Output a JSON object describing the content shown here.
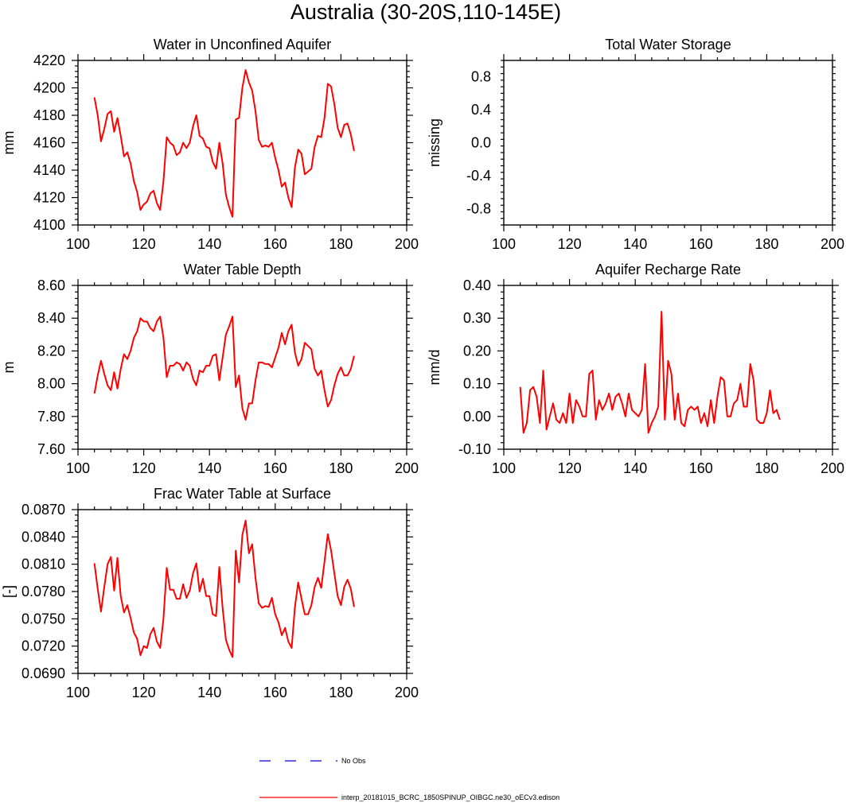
{
  "figure": {
    "title": "Australia (30-20S,110-145E)",
    "series_color": "#ff0000",
    "obs_color": "#0000cc"
  },
  "legend": {
    "obs_label": "No Obs",
    "model_label": "interp_20181015_BCRC_1850SPINUP_OIBGC.ne30_oECv3.edison"
  },
  "chart_data": [
    {
      "id": "aquifer",
      "type": "line",
      "title": "Water in Unconfined Aquifer",
      "xlabel": "",
      "ylabel": "mm",
      "xlim": [
        100,
        200
      ],
      "ylim": [
        4100,
        4220
      ],
      "xticks": [
        100,
        120,
        140,
        160,
        180,
        200
      ],
      "yticks": [
        4100,
        4120,
        4140,
        4160,
        4180,
        4200,
        4220
      ],
      "ytick_labels": [
        "4100",
        "4120",
        "4140",
        "4160",
        "4180",
        "4200",
        "4220"
      ],
      "series": [
        {
          "name": "interp_20181015_BCRC_1850SPINUP_OIBGC.ne30_oECv3.edison",
          "x": [
            105,
            106,
            107,
            108,
            109,
            110,
            111,
            112,
            113,
            114,
            115,
            116,
            117,
            118,
            119,
            120,
            121,
            122,
            123,
            124,
            125,
            126,
            127,
            128,
            129,
            130,
            131,
            132,
            133,
            134,
            135,
            136,
            137,
            138,
            139,
            140,
            141,
            142,
            143,
            144,
            145,
            146,
            147,
            148,
            149,
            150,
            151,
            152,
            153,
            154,
            155,
            156,
            157,
            158,
            159,
            160,
            161,
            162,
            163,
            164,
            165,
            166,
            167,
            168,
            169,
            170,
            171,
            172,
            173,
            174,
            175,
            176,
            177,
            178,
            179,
            180,
            181,
            182,
            183,
            184
          ],
          "values": [
            4193,
            4180,
            4161,
            4170,
            4181,
            4183,
            4168,
            4178,
            4165,
            4150,
            4153,
            4145,
            4132,
            4124,
            4111,
            4115,
            4117,
            4123,
            4125,
            4116,
            4111,
            4132,
            4164,
            4160,
            4158,
            4151,
            4153,
            4160,
            4156,
            4160,
            4172,
            4180,
            4165,
            4163,
            4157,
            4156,
            4146,
            4141,
            4160,
            4145,
            4122,
            4113,
            4106,
            4177,
            4178,
            4200,
            4213,
            4204,
            4198,
            4183,
            4162,
            4157,
            4158,
            4157,
            4160,
            4149,
            4140,
            4128,
            4131,
            4120,
            4113,
            4142,
            4155,
            4152,
            4137,
            4139,
            4141,
            4157,
            4165,
            4164,
            4178,
            4203,
            4201,
            4188,
            4171,
            4164,
            4173,
            4174,
            4166,
            4154
          ]
        }
      ]
    },
    {
      "id": "tws",
      "type": "line",
      "title": "Total Water Storage",
      "xlabel": "",
      "ylabel": "missing",
      "xlim": [
        100,
        200
      ],
      "ylim": [
        -1.0,
        1.0
      ],
      "xticks": [
        100,
        120,
        140,
        160,
        180,
        200
      ],
      "yticks": [
        -0.8,
        -0.4,
        0.0,
        0.4,
        0.8
      ],
      "ytick_labels": [
        "-0.8",
        "-0.4",
        "0.0",
        "0.4",
        "0.8"
      ],
      "series": []
    },
    {
      "id": "wtd",
      "type": "line",
      "title": "Water Table Depth",
      "xlabel": "",
      "ylabel": "m",
      "xlim": [
        100,
        200
      ],
      "ylim": [
        7.6,
        8.6
      ],
      "xticks": [
        100,
        120,
        140,
        160,
        180,
        200
      ],
      "yticks": [
        7.6,
        7.8,
        8.0,
        8.2,
        8.4,
        8.6
      ],
      "ytick_labels": [
        "7.60",
        "7.80",
        "8.00",
        "8.20",
        "8.40",
        "8.60"
      ],
      "series": [
        {
          "name": "interp_20181015_BCRC_1850SPINUP_OIBGC.ne30_oECv3.edison",
          "x": [
            105,
            106,
            107,
            108,
            109,
            110,
            111,
            112,
            113,
            114,
            115,
            116,
            117,
            118,
            119,
            120,
            121,
            122,
            123,
            124,
            125,
            126,
            127,
            128,
            129,
            130,
            131,
            132,
            133,
            134,
            135,
            136,
            137,
            138,
            139,
            140,
            141,
            142,
            143,
            144,
            145,
            146,
            147,
            148,
            149,
            150,
            151,
            152,
            153,
            154,
            155,
            156,
            157,
            158,
            159,
            160,
            161,
            162,
            163,
            164,
            165,
            166,
            167,
            168,
            169,
            170,
            171,
            172,
            173,
            174,
            175,
            176,
            177,
            178,
            179,
            180,
            181,
            182,
            183,
            184
          ],
          "values": [
            7.94,
            8.05,
            8.14,
            8.06,
            7.99,
            7.96,
            8.07,
            7.97,
            8.09,
            8.18,
            8.15,
            8.2,
            8.28,
            8.32,
            8.4,
            8.38,
            8.38,
            8.34,
            8.32,
            8.38,
            8.41,
            8.28,
            8.04,
            8.11,
            8.11,
            8.13,
            8.12,
            8.08,
            8.13,
            8.11,
            8.03,
            7.99,
            8.08,
            8.07,
            8.11,
            8.11,
            8.17,
            8.18,
            8.02,
            8.16,
            8.3,
            8.35,
            8.41,
            7.98,
            8.05,
            7.85,
            7.78,
            7.88,
            7.88,
            8.02,
            8.13,
            8.13,
            8.12,
            8.12,
            8.1,
            8.16,
            8.22,
            8.31,
            8.24,
            8.32,
            8.36,
            8.19,
            8.11,
            8.15,
            8.25,
            8.23,
            8.21,
            8.09,
            8.05,
            8.08,
            7.96,
            7.86,
            7.9,
            7.99,
            8.06,
            8.1,
            8.05,
            8.05,
            8.09,
            8.17
          ]
        }
      ]
    },
    {
      "id": "recharge",
      "type": "line",
      "title": "Aquifer Recharge Rate",
      "xlabel": "",
      "ylabel": "mm/d",
      "xlim": [
        100,
        200
      ],
      "ylim": [
        -0.1,
        0.4
      ],
      "xticks": [
        100,
        120,
        140,
        160,
        180,
        200
      ],
      "yticks": [
        -0.1,
        0.0,
        0.1,
        0.2,
        0.3,
        0.4
      ],
      "ytick_labels": [
        "-0.10",
        "0.00",
        "0.10",
        "0.20",
        "0.30",
        "0.40"
      ],
      "series": [
        {
          "name": "interp_20181015_BCRC_1850SPINUP_OIBGC.ne30_oECv3.edison",
          "x": [
            105,
            106,
            107,
            108,
            109,
            110,
            111,
            112,
            113,
            114,
            115,
            116,
            117,
            118,
            119,
            120,
            121,
            122,
            123,
            124,
            125,
            126,
            127,
            128,
            129,
            130,
            131,
            132,
            133,
            134,
            135,
            136,
            137,
            138,
            139,
            140,
            141,
            142,
            143,
            144,
            145,
            146,
            147,
            148,
            149,
            150,
            151,
            152,
            153,
            154,
            155,
            156,
            157,
            158,
            159,
            160,
            161,
            162,
            163,
            164,
            165,
            166,
            167,
            168,
            169,
            170,
            171,
            172,
            173,
            174,
            175,
            176,
            177,
            178,
            179,
            180,
            181,
            182,
            183,
            184
          ],
          "values": [
            0.09,
            -0.05,
            -0.02,
            0.08,
            0.09,
            0.06,
            -0.02,
            0.14,
            -0.04,
            0.0,
            0.04,
            -0.01,
            -0.02,
            0.01,
            -0.02,
            0.07,
            -0.02,
            0.05,
            0.03,
            0.0,
            0.0,
            0.13,
            0.14,
            -0.01,
            0.05,
            0.02,
            0.04,
            0.07,
            0.02,
            0.06,
            0.07,
            0.04,
            0.0,
            0.07,
            0.02,
            0.01,
            0.0,
            0.02,
            0.16,
            -0.05,
            -0.02,
            0.0,
            0.03,
            0.32,
            -0.01,
            0.17,
            0.13,
            -0.01,
            0.07,
            -0.02,
            -0.03,
            0.02,
            0.03,
            0.02,
            0.03,
            -0.02,
            0.01,
            -0.03,
            0.05,
            -0.02,
            0.06,
            0.12,
            0.11,
            0.0,
            0.0,
            0.04,
            0.05,
            0.1,
            0.03,
            0.03,
            0.16,
            0.11,
            -0.01,
            -0.02,
            -0.02,
            0.01,
            0.08,
            0.01,
            0.02,
            -0.01
          ]
        }
      ]
    },
    {
      "id": "frac",
      "type": "line",
      "title": "Frac Water Table at Surface",
      "xlabel": "",
      "ylabel": "[-]",
      "xlim": [
        100,
        200
      ],
      "ylim": [
        0.069,
        0.087
      ],
      "xticks": [
        100,
        120,
        140,
        160,
        180,
        200
      ],
      "yticks": [
        0.069,
        0.072,
        0.075,
        0.078,
        0.081,
        0.084,
        0.087
      ],
      "ytick_labels": [
        "0.0690",
        "0.0720",
        "0.0750",
        "0.0780",
        "0.0810",
        "0.0840",
        "0.0870"
      ],
      "series": [
        {
          "name": "interp_20181015_BCRC_1850SPINUP_OIBGC.ne30_oECv3.edison",
          "x": [
            105,
            106,
            107,
            108,
            109,
            110,
            111,
            112,
            113,
            114,
            115,
            116,
            117,
            118,
            119,
            120,
            121,
            122,
            123,
            124,
            125,
            126,
            127,
            128,
            129,
            130,
            131,
            132,
            133,
            134,
            135,
            136,
            137,
            138,
            139,
            140,
            141,
            142,
            143,
            144,
            145,
            146,
            147,
            148,
            149,
            150,
            151,
            152,
            153,
            154,
            155,
            156,
            157,
            158,
            159,
            160,
            161,
            162,
            163,
            164,
            165,
            166,
            167,
            168,
            169,
            170,
            171,
            172,
            173,
            174,
            175,
            176,
            177,
            178,
            179,
            180,
            181,
            182,
            183,
            184
          ],
          "values": [
            0.0811,
            0.0783,
            0.0758,
            0.0785,
            0.081,
            0.0818,
            0.0781,
            0.0817,
            0.0775,
            0.0757,
            0.0765,
            0.0751,
            0.0735,
            0.0728,
            0.071,
            0.072,
            0.0718,
            0.0733,
            0.074,
            0.0725,
            0.0718,
            0.075,
            0.0806,
            0.0782,
            0.0782,
            0.0772,
            0.0772,
            0.0788,
            0.0773,
            0.0781,
            0.08,
            0.0811,
            0.078,
            0.0794,
            0.0775,
            0.0775,
            0.0755,
            0.0753,
            0.0807,
            0.0762,
            0.0727,
            0.0716,
            0.0708,
            0.0825,
            0.079,
            0.0842,
            0.0858,
            0.0822,
            0.0832,
            0.0795,
            0.0767,
            0.0762,
            0.0764,
            0.0763,
            0.0773,
            0.0755,
            0.0746,
            0.0732,
            0.074,
            0.0725,
            0.0718,
            0.0763,
            0.079,
            0.0772,
            0.0755,
            0.0755,
            0.0765,
            0.0785,
            0.0795,
            0.0784,
            0.0813,
            0.0843,
            0.0825,
            0.08,
            0.0775,
            0.0765,
            0.0785,
            0.0793,
            0.0783,
            0.0763
          ]
        }
      ]
    }
  ]
}
